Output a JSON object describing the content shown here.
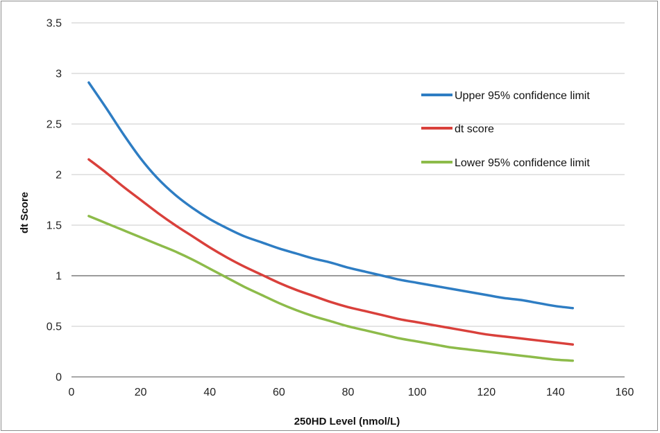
{
  "chart_data": {
    "type": "line",
    "xlabel": "250HD Level (nmol/L)",
    "ylabel": "dt Score",
    "xlim": [
      0,
      160
    ],
    "ylim": [
      0,
      3.5
    ],
    "xticks": [
      "0",
      "20",
      "40",
      "60",
      "80",
      "100",
      "120",
      "140",
      "160"
    ],
    "yticks": [
      "0",
      "0.5",
      "1",
      "1.5",
      "2",
      "2.5",
      "3",
      "3.5"
    ],
    "grid": "horizontal",
    "reference_line": 1,
    "legend_position": "top-right",
    "x": [
      5,
      10,
      15,
      20,
      25,
      30,
      35,
      40,
      45,
      50,
      55,
      60,
      65,
      70,
      75,
      80,
      85,
      90,
      95,
      100,
      105,
      110,
      115,
      120,
      125,
      130,
      135,
      140,
      145
    ],
    "series": [
      {
        "name": "Upper 95% confidence limit",
        "color": "#2e7dc3",
        "values": [
          2.91,
          2.66,
          2.4,
          2.16,
          1.96,
          1.8,
          1.67,
          1.56,
          1.47,
          1.39,
          1.33,
          1.27,
          1.22,
          1.17,
          1.13,
          1.08,
          1.04,
          1.0,
          0.96,
          0.93,
          0.9,
          0.87,
          0.84,
          0.81,
          0.78,
          0.76,
          0.73,
          0.7,
          0.68
        ]
      },
      {
        "name": "dt score",
        "color": "#d9403b",
        "values": [
          2.15,
          2.02,
          1.88,
          1.75,
          1.62,
          1.5,
          1.39,
          1.28,
          1.18,
          1.09,
          1.01,
          0.93,
          0.86,
          0.8,
          0.74,
          0.69,
          0.65,
          0.61,
          0.57,
          0.54,
          0.51,
          0.48,
          0.45,
          0.42,
          0.4,
          0.38,
          0.36,
          0.34,
          0.32
        ]
      },
      {
        "name": "Lower 95% confidence limit",
        "color": "#8dbb4a",
        "values": [
          1.59,
          1.52,
          1.45,
          1.38,
          1.31,
          1.24,
          1.16,
          1.07,
          0.98,
          0.89,
          0.81,
          0.73,
          0.66,
          0.6,
          0.55,
          0.5,
          0.46,
          0.42,
          0.38,
          0.35,
          0.32,
          0.29,
          0.27,
          0.25,
          0.23,
          0.21,
          0.19,
          0.17,
          0.16
        ]
      }
    ]
  }
}
